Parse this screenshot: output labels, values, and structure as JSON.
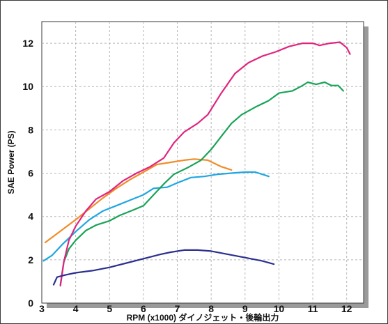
{
  "chart_data": {
    "type": "line",
    "title": "",
    "xlabel": "RPM (x1000) ダイノジェット・後輪出力",
    "ylabel": "SAE Power (PS)",
    "xlim": [
      3,
      12.5
    ],
    "ylim": [
      0,
      13
    ],
    "x_ticks": [
      3,
      4,
      5,
      6,
      7,
      8,
      9,
      10,
      11,
      12
    ],
    "y_ticks": [
      0,
      2,
      4,
      6,
      8,
      10,
      12
    ],
    "grid": true,
    "colors": {
      "plot_bg": "#ffffff",
      "grid": "#b5b5b5",
      "shadow": "#9a9a9a",
      "orange": "#f28c28",
      "cyan": "#1ea7e1",
      "green": "#19a357",
      "magenta": "#e0247e",
      "navy": "#2b2f8f"
    },
    "series": [
      {
        "color": "orange",
        "points": [
          [
            3.1,
            2.8
          ],
          [
            3.4,
            3.15
          ],
          [
            3.7,
            3.5
          ],
          [
            4.0,
            3.85
          ],
          [
            4.4,
            4.35
          ],
          [
            4.8,
            4.85
          ],
          [
            5.2,
            5.3
          ],
          [
            5.6,
            5.7
          ],
          [
            6.0,
            6.05
          ],
          [
            6.4,
            6.4
          ],
          [
            6.8,
            6.5
          ],
          [
            7.2,
            6.6
          ],
          [
            7.5,
            6.65
          ],
          [
            7.9,
            6.6
          ],
          [
            8.3,
            6.3
          ],
          [
            8.6,
            6.15
          ]
        ]
      },
      {
        "color": "cyan",
        "points": [
          [
            3.05,
            1.95
          ],
          [
            3.3,
            2.2
          ],
          [
            3.6,
            2.7
          ],
          [
            4.0,
            3.3
          ],
          [
            4.4,
            3.85
          ],
          [
            4.8,
            4.25
          ],
          [
            5.2,
            4.5
          ],
          [
            5.6,
            4.75
          ],
          [
            6.0,
            5.0
          ],
          [
            6.3,
            5.3
          ],
          [
            6.7,
            5.35
          ],
          [
            7.0,
            5.55
          ],
          [
            7.4,
            5.8
          ],
          [
            7.8,
            5.85
          ],
          [
            8.2,
            5.95
          ],
          [
            8.6,
            6.0
          ],
          [
            9.0,
            6.05
          ],
          [
            9.3,
            6.05
          ],
          [
            9.6,
            5.9
          ],
          [
            9.7,
            5.85
          ]
        ]
      },
      {
        "color": "green",
        "points": [
          [
            3.55,
            0.85
          ],
          [
            3.65,
            1.9
          ],
          [
            3.8,
            2.5
          ],
          [
            4.0,
            2.9
          ],
          [
            4.3,
            3.35
          ],
          [
            4.6,
            3.6
          ],
          [
            5.0,
            3.8
          ],
          [
            5.3,
            4.05
          ],
          [
            5.7,
            4.3
          ],
          [
            6.0,
            4.5
          ],
          [
            6.3,
            5.0
          ],
          [
            6.6,
            5.5
          ],
          [
            6.9,
            5.95
          ],
          [
            7.3,
            6.25
          ],
          [
            7.7,
            6.6
          ],
          [
            8.0,
            7.1
          ],
          [
            8.3,
            7.7
          ],
          [
            8.6,
            8.3
          ],
          [
            8.9,
            8.7
          ],
          [
            9.3,
            9.05
          ],
          [
            9.7,
            9.35
          ],
          [
            10.0,
            9.7
          ],
          [
            10.4,
            9.8
          ],
          [
            10.7,
            10.05
          ],
          [
            10.85,
            10.2
          ],
          [
            11.1,
            10.1
          ],
          [
            11.35,
            10.2
          ],
          [
            11.55,
            10.05
          ],
          [
            11.75,
            10.05
          ],
          [
            11.9,
            9.8
          ]
        ]
      },
      {
        "color": "magenta",
        "points": [
          [
            3.55,
            0.8
          ],
          [
            3.65,
            1.9
          ],
          [
            3.8,
            2.9
          ],
          [
            4.0,
            3.55
          ],
          [
            4.3,
            4.25
          ],
          [
            4.6,
            4.8
          ],
          [
            5.0,
            5.15
          ],
          [
            5.4,
            5.65
          ],
          [
            5.8,
            6.0
          ],
          [
            6.2,
            6.3
          ],
          [
            6.6,
            6.7
          ],
          [
            6.9,
            7.4
          ],
          [
            7.2,
            7.9
          ],
          [
            7.6,
            8.3
          ],
          [
            7.9,
            8.7
          ],
          [
            8.3,
            9.7
          ],
          [
            8.7,
            10.6
          ],
          [
            9.1,
            11.1
          ],
          [
            9.5,
            11.4
          ],
          [
            9.9,
            11.6
          ],
          [
            10.3,
            11.85
          ],
          [
            10.7,
            12.0
          ],
          [
            11.0,
            12.0
          ],
          [
            11.2,
            11.9
          ],
          [
            11.5,
            12.0
          ],
          [
            11.8,
            12.05
          ],
          [
            12.0,
            11.8
          ],
          [
            12.1,
            11.5
          ]
        ]
      },
      {
        "color": "navy",
        "points": [
          [
            3.35,
            0.85
          ],
          [
            3.45,
            1.2
          ],
          [
            3.7,
            1.3
          ],
          [
            4.0,
            1.4
          ],
          [
            4.5,
            1.5
          ],
          [
            5.0,
            1.65
          ],
          [
            5.5,
            1.85
          ],
          [
            6.0,
            2.05
          ],
          [
            6.5,
            2.25
          ],
          [
            6.8,
            2.35
          ],
          [
            7.2,
            2.45
          ],
          [
            7.6,
            2.45
          ],
          [
            8.0,
            2.4
          ],
          [
            8.5,
            2.25
          ],
          [
            9.0,
            2.1
          ],
          [
            9.5,
            1.95
          ],
          [
            9.85,
            1.8
          ]
        ]
      }
    ]
  }
}
